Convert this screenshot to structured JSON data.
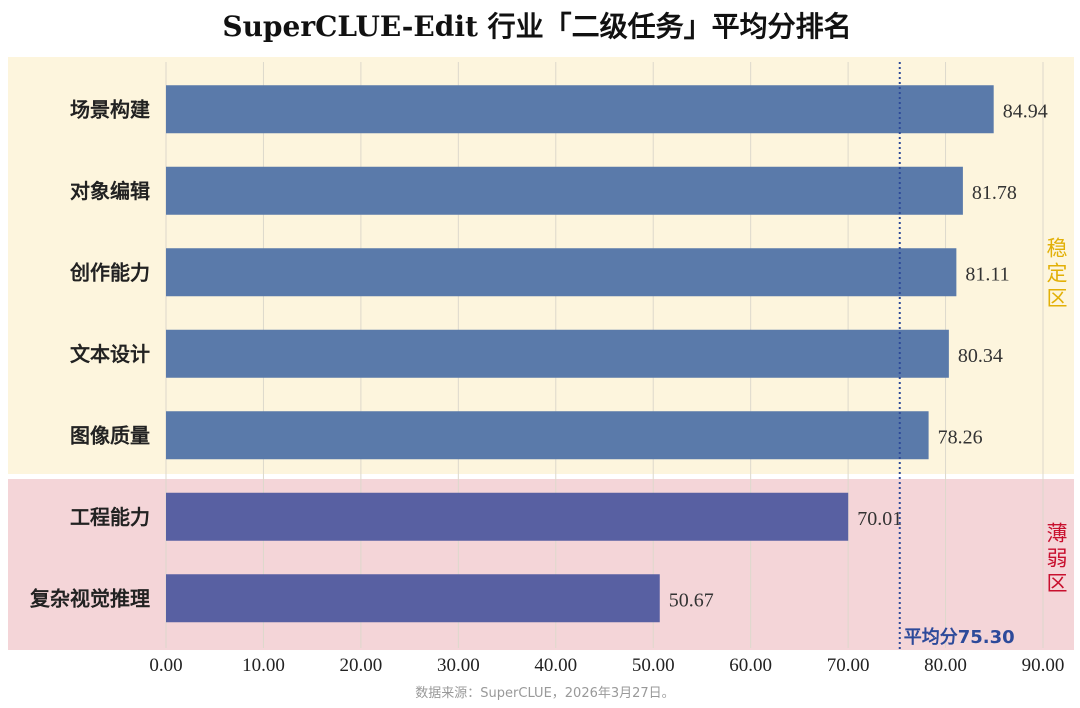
{
  "chart_data": {
    "type": "bar",
    "orientation": "horizontal",
    "title": "SuperCLUE-Edit 行业「二级任务」平均分排名",
    "categories": [
      "场景构建",
      "对象编辑",
      "创作能力",
      "文本设计",
      "图像质量",
      "工程能力",
      "复杂视觉推理"
    ],
    "values": [
      84.94,
      81.78,
      81.11,
      80.34,
      78.26,
      70.01,
      50.67
    ],
    "value_labels": [
      "84.94",
      "81.78",
      "81.11",
      "80.34",
      "78.26",
      "70.01",
      "50.67"
    ],
    "xlim": [
      0,
      90
    ],
    "x_ticks": [
      0,
      10,
      20,
      30,
      40,
      50,
      60,
      70,
      80,
      90
    ],
    "x_tick_labels": [
      "0.00",
      "10.00",
      "20.00",
      "30.00",
      "40.00",
      "50.00",
      "60.00",
      "70.00",
      "80.00",
      "90.00"
    ],
    "grid": "vertical",
    "average": {
      "value": 75.3,
      "label": "平均分75.30",
      "color": "#2d4a9a"
    },
    "zones": [
      {
        "label": "稳定区",
        "from_index": 0,
        "to_index": 4,
        "bg_color": "#fdf5dd",
        "bar_color": "#5a7aaa",
        "label_color": "#e2b007"
      },
      {
        "label": "薄弱区",
        "from_index": 5,
        "to_index": 6,
        "bg_color": "#f4d5d8",
        "bar_color": "#5860a2",
        "label_color": "#c8102e"
      }
    ],
    "source": "数据来源：SuperCLUE，2026年3月27日。"
  }
}
